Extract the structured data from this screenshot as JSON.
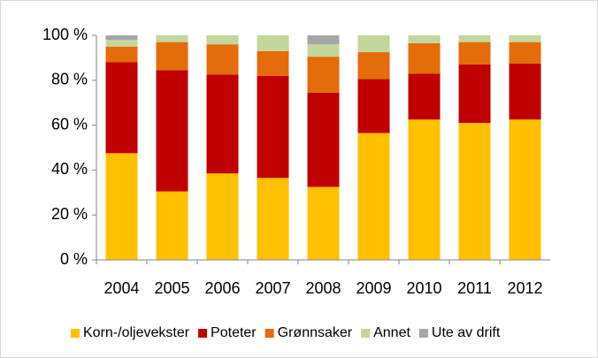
{
  "chart_data": {
    "type": "bar",
    "stacked": true,
    "categories": [
      "2004",
      "2005",
      "2006",
      "2007",
      "2008",
      "2009",
      "2010",
      "2011",
      "2012"
    ],
    "series": [
      {
        "name": "Korn-/oljevekster",
        "color": "#ffc000",
        "values": [
          47.5,
          30.5,
          38.5,
          36.5,
          32.5,
          56.5,
          62.5,
          61,
          62.5
        ]
      },
      {
        "name": "Poteter",
        "color": "#c00000",
        "values": [
          40.5,
          54,
          44,
          45.5,
          42,
          24,
          20.5,
          26,
          25
        ]
      },
      {
        "name": "Grønnsaker",
        "color": "#e46c0a",
        "values": [
          7,
          12.5,
          13.5,
          11,
          16,
          12,
          13.5,
          10,
          9.5
        ]
      },
      {
        "name": "Annet",
        "color": "#c3d69b",
        "values": [
          3,
          3,
          4,
          7,
          5.5,
          7.5,
          3.5,
          3,
          3
        ]
      },
      {
        "name": "Ute av drift",
        "color": "#a6a6a6",
        "values": [
          2,
          0,
          0,
          0,
          4,
          0,
          0,
          0,
          0
        ]
      }
    ],
    "ylim": [
      0,
      100
    ],
    "yticks": [
      {
        "value": 0,
        "label": "0 %"
      },
      {
        "value": 20,
        "label": "20 %"
      },
      {
        "value": 40,
        "label": "40 %"
      },
      {
        "value": 60,
        "label": "60 %"
      },
      {
        "value": 80,
        "label": "80 %"
      },
      {
        "value": 100,
        "label": "100 %"
      }
    ],
    "grid": false,
    "legend": "bottom"
  }
}
